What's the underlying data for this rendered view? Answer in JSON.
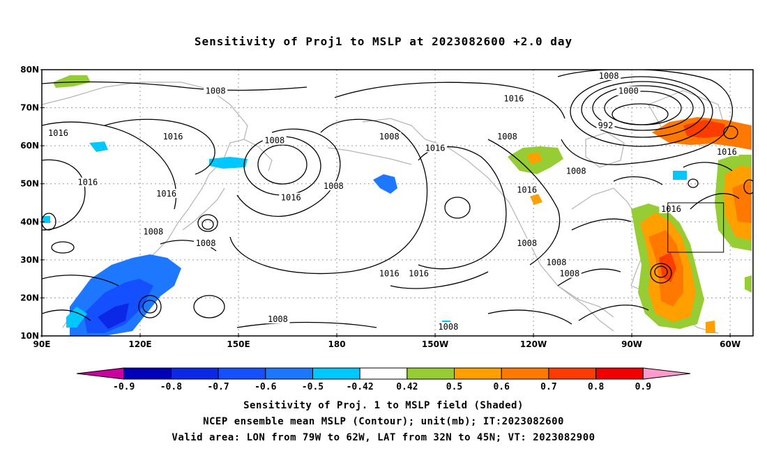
{
  "title": "Sensitivity of Proj1 to MSLP at 2023082600 +2.0 day",
  "captions": [
    "Sensitivity of Proj. 1 to MSLP field (Shaded)",
    "NCEP ensemble mean MSLP (Contour); unit(mb); IT:2023082600",
    "Valid area: LON from 79W to 62W, LAT from 32N to 45N; VT: 2023082900"
  ],
  "map": {
    "lat_labels": [
      "80N",
      "70N",
      "60N",
      "50N",
      "40N",
      "30N",
      "20N",
      "10N"
    ],
    "lon_labels": [
      "90E",
      "120E",
      "150E",
      "180",
      "150W",
      "120W",
      "90W",
      "60W"
    ],
    "lat_range": [
      10,
      80
    ],
    "lon_range_east": [
      90,
      307
    ],
    "grid": true,
    "valid_area": {
      "lon_west": -79,
      "lon_east": -62,
      "lat_south": 32,
      "lat_north": 45
    }
  },
  "contour_labels": [
    {
      "text": "1008",
      "lon": 143,
      "lat": 74
    },
    {
      "text": "1016",
      "lon": 95,
      "lat": 63
    },
    {
      "text": "1016",
      "lon": 130,
      "lat": 62
    },
    {
      "text": "1008",
      "lon": 161,
      "lat": 61
    },
    {
      "text": "1016",
      "lon": 104,
      "lat": 50
    },
    {
      "text": "1016",
      "lon": 128,
      "lat": 47
    },
    {
      "text": "1016",
      "lon": 166,
      "lat": 46
    },
    {
      "text": "1008",
      "lon": 179,
      "lat": 49
    },
    {
      "text": "1008",
      "lon": 124,
      "lat": 37
    },
    {
      "text": "1008",
      "lon": 140,
      "lat": 34
    },
    {
      "text": "1008",
      "lon": 196,
      "lat": 62
    },
    {
      "text": "1016",
      "lon": 210,
      "lat": 59
    },
    {
      "text": "1016",
      "lon": 234,
      "lat": 72
    },
    {
      "text": "1008",
      "lon": 232,
      "lat": 62
    },
    {
      "text": "1008",
      "lon": 263,
      "lat": 78
    },
    {
      "text": "1000",
      "lon": 269,
      "lat": 74
    },
    {
      "text": "992",
      "lon": 262,
      "lat": 65
    },
    {
      "text": "1016",
      "lon": 299,
      "lat": 58
    },
    {
      "text": "1008",
      "lon": 253,
      "lat": 53
    },
    {
      "text": "1016",
      "lon": 238,
      "lat": 48
    },
    {
      "text": "1016",
      "lon": 282,
      "lat": 43
    },
    {
      "text": "1008",
      "lon": 238,
      "lat": 34
    },
    {
      "text": "1016",
      "lon": 196,
      "lat": 26
    },
    {
      "text": "1016",
      "lon": 205,
      "lat": 26
    },
    {
      "text": "1008",
      "lon": 247,
      "lat": 29
    },
    {
      "text": "1008",
      "lon": 251,
      "lat": 26
    },
    {
      "text": "1008",
      "lon": 162,
      "lat": 14
    },
    {
      "text": "1008",
      "lon": 214,
      "lat": 12
    }
  ],
  "colorbar": {
    "labels": [
      "-0.9",
      "-0.8",
      "-0.7",
      "-0.6",
      "-0.5",
      "-0.42",
      "0.42",
      "0.5",
      "0.6",
      "0.7",
      "0.8",
      "0.9"
    ],
    "colors": [
      "#cc00a0",
      "#0000b8",
      "#0a28e6",
      "#1450ff",
      "#1e78ff",
      "#00c8ff",
      "#ffffff",
      "#96cc34",
      "#ffa000",
      "#ff7800",
      "#ff3c00",
      "#f00000",
      "#ff9acc"
    ]
  }
}
